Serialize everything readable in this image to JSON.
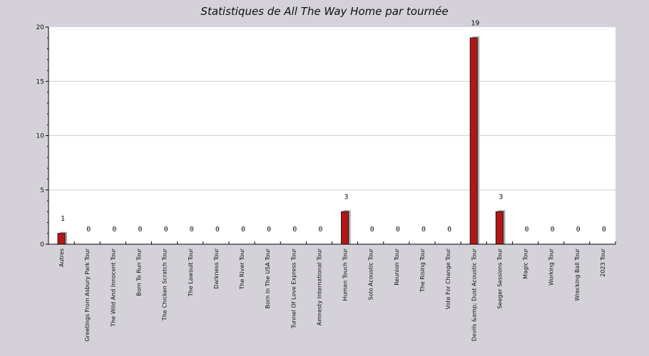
{
  "chart_data": {
    "type": "bar",
    "title": "Statistiques de All The Way Home par tournée",
    "xlabel": "",
    "ylabel": "",
    "ylim": [
      0,
      20
    ],
    "yticks": [
      0,
      5,
      10,
      15,
      20
    ],
    "grid": true,
    "legend": "none",
    "categories": [
      "Autres",
      "Greetings From Asbury Park Tour",
      "The Wild And Innocent Tour",
      "Born To Run Tour",
      "The Chicken Scratch Tour",
      "The Lawsuit Tour",
      "Darkness Tour",
      "The River Tour",
      "Born In The USA Tour",
      "Tunnel Of Love Express Tour",
      "Amnesty International Tour",
      "Human Touch Tour",
      "Solo Acoustic Tour",
      "Reunion Tour",
      "The Rising Tour",
      "Vote For Change Tour",
      "Devils &amp; Dust Acoustic Tour",
      "Seeger Sessions Tour",
      "Magic Tour",
      "Working Tour",
      "Wrecking Ball Tour",
      "2023 Tour"
    ],
    "values": [
      1,
      0,
      0,
      0,
      0,
      0,
      0,
      0,
      0,
      0,
      0,
      3,
      0,
      0,
      0,
      0,
      19,
      3,
      0,
      0,
      0,
      0
    ],
    "colors": {
      "bar": "#b01818",
      "bar_stroke": "#3a0a0a",
      "shadow": "#a8a8a8",
      "plot_bg": "#ffffff",
      "page_bg": "#d4d2d8",
      "grid": "#cfcfcf"
    }
  }
}
